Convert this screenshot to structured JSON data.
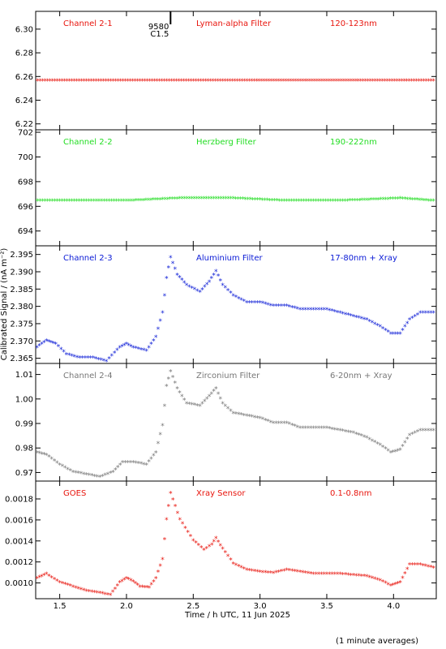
{
  "chart_data": [
    {
      "type": "scatter",
      "labels": [
        "Channel 2-1",
        "Lyman-alpha Filter",
        "120-123nm"
      ],
      "color": "#e8140c",
      "ylim": [
        6.215,
        6.315
      ],
      "yticks": [
        "6.22",
        "6.24",
        "6.26",
        "6.28",
        "6.30"
      ],
      "annotation": {
        "x": 2.33,
        "text1": "9580",
        "text2": "C1.5"
      },
      "points": [
        [
          1.3,
          6.256
        ],
        [
          1.5,
          6.256
        ],
        [
          1.7,
          6.256
        ],
        [
          1.9,
          6.256
        ],
        [
          2.1,
          6.256
        ],
        [
          2.3,
          6.256
        ],
        [
          2.5,
          6.256
        ],
        [
          2.7,
          6.256
        ],
        [
          2.9,
          6.256
        ],
        [
          3.1,
          6.256
        ],
        [
          3.3,
          6.256
        ],
        [
          3.5,
          6.256
        ],
        [
          3.7,
          6.256
        ],
        [
          3.9,
          6.256
        ],
        [
          4.1,
          6.256
        ],
        [
          4.3,
          6.256
        ]
      ]
    },
    {
      "type": "scatter",
      "labels": [
        "Channel 2-2",
        "Herzberg Filter",
        "190-222nm"
      ],
      "color": "#22dd22",
      "ylim": [
        692.8,
        702.2
      ],
      "yticks": [
        "694",
        "696",
        "698",
        "700",
        "702"
      ],
      "points": [
        [
          1.3,
          696.4
        ],
        [
          1.7,
          696.4
        ],
        [
          2.0,
          696.4
        ],
        [
          2.4,
          696.6
        ],
        [
          2.8,
          696.6
        ],
        [
          3.2,
          696.4
        ],
        [
          3.6,
          696.4
        ],
        [
          4.05,
          696.6
        ],
        [
          4.3,
          696.4
        ]
      ]
    },
    {
      "type": "scatter",
      "labels": [
        "Channel 2-3",
        "Aluminium Filter",
        "17-80nm + Xray"
      ],
      "color": "#0a1ad6",
      "ylim": [
        2.3635,
        2.3975
      ],
      "yticks": [
        "2.365",
        "2.370",
        "2.375",
        "2.380",
        "2.385",
        "2.390",
        "2.395"
      ],
      "points": [
        [
          1.33,
          2.368
        ],
        [
          1.4,
          2.37
        ],
        [
          1.47,
          2.369
        ],
        [
          1.55,
          2.366
        ],
        [
          1.65,
          2.365
        ],
        [
          1.75,
          2.365
        ],
        [
          1.85,
          2.364
        ],
        [
          1.95,
          2.368
        ],
        [
          2.0,
          2.369
        ],
        [
          2.05,
          2.368
        ],
        [
          2.15,
          2.367
        ],
        [
          2.22,
          2.371
        ],
        [
          2.27,
          2.378
        ],
        [
          2.3,
          2.388
        ],
        [
          2.33,
          2.394
        ],
        [
          2.38,
          2.389
        ],
        [
          2.45,
          2.386
        ],
        [
          2.55,
          2.384
        ],
        [
          2.62,
          2.387
        ],
        [
          2.67,
          2.39
        ],
        [
          2.72,
          2.386
        ],
        [
          2.8,
          2.383
        ],
        [
          2.9,
          2.381
        ],
        [
          3.0,
          2.381
        ],
        [
          3.1,
          2.38
        ],
        [
          3.2,
          2.38
        ],
        [
          3.3,
          2.379
        ],
        [
          3.4,
          2.379
        ],
        [
          3.5,
          2.379
        ],
        [
          3.6,
          2.378
        ],
        [
          3.7,
          2.377
        ],
        [
          3.8,
          2.376
        ],
        [
          3.9,
          2.374
        ],
        [
          3.98,
          2.372
        ],
        [
          4.05,
          2.372
        ],
        [
          4.12,
          2.376
        ],
        [
          4.2,
          2.378
        ],
        [
          4.3,
          2.378
        ]
      ]
    },
    {
      "type": "scatter",
      "labels": [
        "Channel 2-4",
        "Zirconium Filter",
        "6-20nm + Xray"
      ],
      "color": "#777777",
      "ylim": [
        0.9665,
        1.0145
      ],
      "yticks": [
        "0.97",
        "0.98",
        "0.99",
        "1.00",
        "1.01"
      ],
      "points": [
        [
          1.33,
          0.978
        ],
        [
          1.4,
          0.977
        ],
        [
          1.5,
          0.973
        ],
        [
          1.6,
          0.97
        ],
        [
          1.7,
          0.969
        ],
        [
          1.8,
          0.968
        ],
        [
          1.9,
          0.97
        ],
        [
          1.97,
          0.974
        ],
        [
          2.05,
          0.974
        ],
        [
          2.15,
          0.973
        ],
        [
          2.22,
          0.978
        ],
        [
          2.27,
          0.989
        ],
        [
          2.3,
          1.005
        ],
        [
          2.33,
          1.011
        ],
        [
          2.38,
          1.004
        ],
        [
          2.45,
          0.998
        ],
        [
          2.55,
          0.997
        ],
        [
          2.62,
          1.001
        ],
        [
          2.67,
          1.004
        ],
        [
          2.72,
          0.998
        ],
        [
          2.8,
          0.994
        ],
        [
          2.9,
          0.993
        ],
        [
          3.0,
          0.992
        ],
        [
          3.1,
          0.99
        ],
        [
          3.2,
          0.99
        ],
        [
          3.3,
          0.988
        ],
        [
          3.4,
          0.988
        ],
        [
          3.5,
          0.988
        ],
        [
          3.6,
          0.987
        ],
        [
          3.7,
          0.986
        ],
        [
          3.8,
          0.984
        ],
        [
          3.9,
          0.981
        ],
        [
          3.98,
          0.978
        ],
        [
          4.05,
          0.979
        ],
        [
          4.12,
          0.985
        ],
        [
          4.2,
          0.987
        ],
        [
          4.3,
          0.987
        ]
      ]
    },
    {
      "type": "scatter",
      "labels": [
        "GOES",
        "Xray Sensor",
        "0.1-0.8nm"
      ],
      "color": "#e8140c",
      "ylim": [
        0.00085,
        0.00197
      ],
      "yticks": [
        "0.0010",
        "0.0012",
        "0.0014",
        "0.0016",
        "0.0018"
      ],
      "points": [
        [
          1.33,
          0.00104
        ],
        [
          1.4,
          0.00108
        ],
        [
          1.5,
          0.001
        ],
        [
          1.6,
          0.00096
        ],
        [
          1.7,
          0.00092
        ],
        [
          1.8,
          0.0009
        ],
        [
          1.88,
          0.00088
        ],
        [
          1.95,
          0.001
        ],
        [
          2.0,
          0.00104
        ],
        [
          2.05,
          0.00101
        ],
        [
          2.1,
          0.00096
        ],
        [
          2.17,
          0.00095
        ],
        [
          2.22,
          0.00104
        ],
        [
          2.27,
          0.00122
        ],
        [
          2.3,
          0.0016
        ],
        [
          2.33,
          0.00185
        ],
        [
          2.4,
          0.0016
        ],
        [
          2.5,
          0.0014
        ],
        [
          2.58,
          0.00131
        ],
        [
          2.64,
          0.00136
        ],
        [
          2.67,
          0.00142
        ],
        [
          2.72,
          0.00132
        ],
        [
          2.8,
          0.00118
        ],
        [
          2.9,
          0.00112
        ],
        [
          3.0,
          0.0011
        ],
        [
          3.1,
          0.00109
        ],
        [
          3.2,
          0.00112
        ],
        [
          3.3,
          0.0011
        ],
        [
          3.4,
          0.00108
        ],
        [
          3.5,
          0.00108
        ],
        [
          3.6,
          0.00108
        ],
        [
          3.7,
          0.00107
        ],
        [
          3.8,
          0.00106
        ],
        [
          3.9,
          0.00102
        ],
        [
          3.98,
          0.00097
        ],
        [
          4.05,
          0.001
        ],
        [
          4.12,
          0.00117
        ],
        [
          4.2,
          0.00117
        ],
        [
          4.3,
          0.00114
        ]
      ]
    }
  ],
  "x_axis": {
    "label": "Time / h UTC, 11 Jun 2025",
    "xlim": [
      1.32,
      4.32
    ],
    "ticks": [
      "1.5",
      "2.0",
      "2.5",
      "3.0",
      "3.5",
      "4.0"
    ]
  },
  "y_label": "Calibrated Signal / (nA m⁻²)",
  "footer": "(1 minute averages)"
}
